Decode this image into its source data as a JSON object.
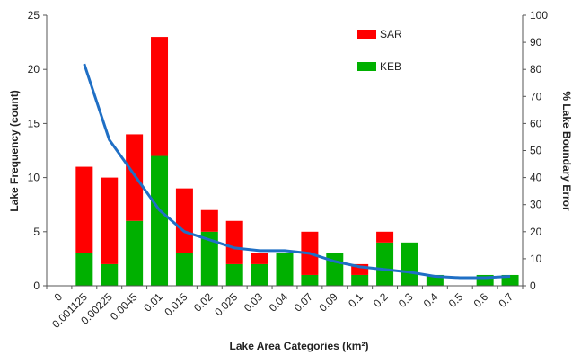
{
  "chart_data": {
    "type": "bar",
    "stacked": true,
    "categories": [
      "0",
      "0.001125",
      "0.00225",
      "0.0045",
      "0.01",
      "0.015",
      "0.02",
      "0.025",
      "0.03",
      "0.04",
      "0.07",
      "0.09",
      "0.1",
      "0.2",
      "0.3",
      "0.4",
      "0.5",
      "0.6",
      "0.7"
    ],
    "series": [
      {
        "name": "KEB",
        "color": "#00b000",
        "values": [
          0,
          3,
          2,
          6,
          12,
          3,
          5,
          2,
          2,
          3,
          1,
          3,
          1,
          4,
          4,
          1,
          0,
          1,
          1
        ]
      },
      {
        "name": "SAR",
        "color": "#ff0000",
        "values": [
          0,
          8,
          8,
          8,
          11,
          6,
          2,
          4,
          1,
          0,
          4,
          0,
          1,
          1,
          0,
          0,
          0,
          0,
          0
        ]
      }
    ],
    "line": {
      "axis": "right",
      "color": "#1f6fc5",
      "x": [
        "0.001125",
        "0.00225",
        "0.0045",
        "0.01",
        "0.015",
        "0.02",
        "0.025",
        "0.03",
        "0.04",
        "0.07",
        "0.09",
        "0.1",
        "0.2",
        "0.3",
        "0.4",
        "0.5",
        "0.6",
        "0.7"
      ],
      "values": [
        82,
        54,
        41,
        28,
        20,
        17,
        14,
        13,
        13,
        12,
        9,
        7,
        6,
        5,
        3.5,
        3,
        3,
        3.5
      ]
    },
    "xlabel": "Lake Area Categories  (km²)",
    "ylabel": "Lake Frequency (count)",
    "y2label": "% Lake Boundary Error",
    "ylim": [
      0,
      25
    ],
    "yticks": [
      0,
      5,
      10,
      15,
      20,
      25
    ],
    "y2lim": [
      0,
      100
    ],
    "y2ticks": [
      0,
      10,
      20,
      30,
      40,
      50,
      60,
      70,
      80,
      90,
      100
    ],
    "grid": false,
    "legend_position": "top-center"
  }
}
